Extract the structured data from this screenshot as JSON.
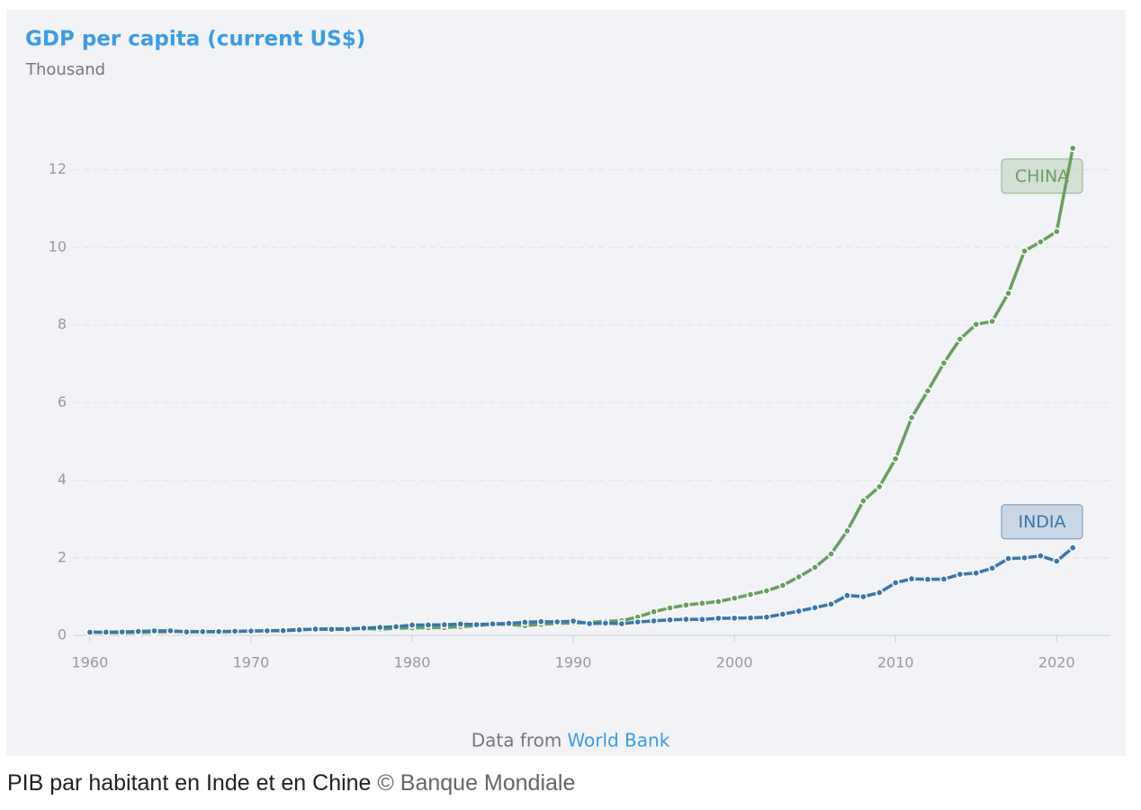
{
  "chart_data": {
    "type": "line",
    "title": "GDP per capita (current US$)",
    "subtitle": "Thousand",
    "source": {
      "text": "Data from",
      "link": "World Bank"
    },
    "x": [
      1960,
      1961,
      1962,
      1963,
      1964,
      1965,
      1966,
      1967,
      1968,
      1969,
      1970,
      1971,
      1972,
      1973,
      1974,
      1975,
      1976,
      1977,
      1978,
      1979,
      1980,
      1981,
      1982,
      1983,
      1984,
      1985,
      1986,
      1987,
      1988,
      1989,
      1990,
      1991,
      1992,
      1993,
      1994,
      1995,
      1996,
      1997,
      1998,
      1999,
      2000,
      2001,
      2002,
      2003,
      2004,
      2005,
      2006,
      2007,
      2008,
      2009,
      2010,
      2011,
      2012,
      2013,
      2014,
      2015,
      2016,
      2017,
      2018,
      2019,
      2020,
      2021
    ],
    "series": [
      {
        "name": "CHINA",
        "color": "#6a9e5f",
        "values": [
          0.09,
          0.076,
          0.071,
          0.075,
          0.085,
          0.098,
          0.104,
          0.096,
          0.091,
          0.1,
          0.113,
          0.119,
          0.132,
          0.157,
          0.16,
          0.178,
          0.165,
          0.185,
          0.156,
          0.183,
          0.195,
          0.197,
          0.203,
          0.225,
          0.25,
          0.294,
          0.282,
          0.252,
          0.284,
          0.311,
          0.318,
          0.333,
          0.366,
          0.377,
          0.473,
          0.61,
          0.709,
          0.782,
          0.829,
          0.873,
          0.959,
          1.053,
          1.149,
          1.289,
          1.509,
          1.753,
          2.099,
          2.694,
          3.468,
          3.832,
          4.55,
          5.614,
          6.301,
          7.02,
          7.636,
          8.016,
          8.094,
          8.817,
          9.905,
          10.144,
          10.409,
          12.556
        ]
      },
      {
        "name": "INDIA",
        "color": "#3a76a8",
        "values": [
          0.082,
          0.085,
          0.089,
          0.101,
          0.116,
          0.119,
          0.09,
          0.096,
          0.099,
          0.107,
          0.112,
          0.118,
          0.122,
          0.143,
          0.163,
          0.158,
          0.161,
          0.186,
          0.205,
          0.224,
          0.267,
          0.27,
          0.275,
          0.292,
          0.277,
          0.296,
          0.31,
          0.34,
          0.355,
          0.347,
          0.368,
          0.303,
          0.317,
          0.301,
          0.346,
          0.374,
          0.4,
          0.415,
          0.413,
          0.442,
          0.443,
          0.452,
          0.471,
          0.546,
          0.627,
          0.714,
          0.807,
          1.028,
          0.999,
          1.102,
          1.358,
          1.458,
          1.444,
          1.45,
          1.574,
          1.606,
          1.733,
          1.981,
          1.997,
          2.05,
          1.913,
          2.257
        ]
      }
    ],
    "xlim": [
      1959,
      2023
    ],
    "xticks": [
      1960,
      1970,
      1980,
      1990,
      2000,
      2010,
      2020
    ],
    "ylim": [
      0,
      13.5
    ],
    "yticks": [
      0,
      2,
      4,
      6,
      8,
      10,
      12
    ],
    "grid": true
  },
  "caption": "PIB par habitant en Inde et en Chine",
  "credit": "© Banque Mondiale"
}
